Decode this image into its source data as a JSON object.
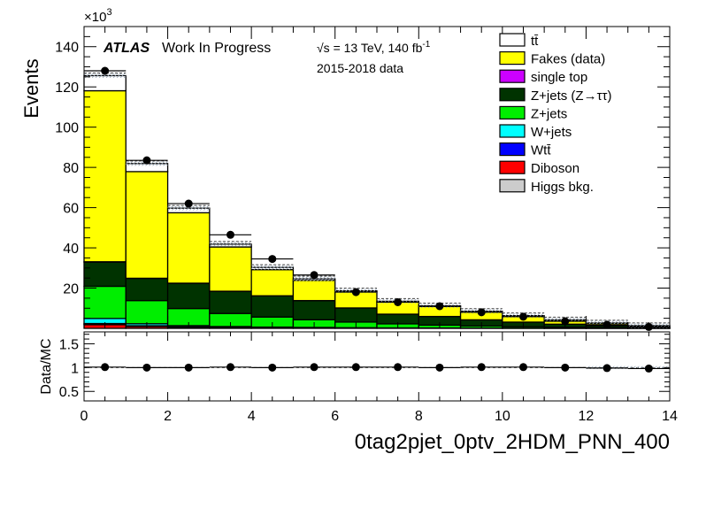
{
  "chart_data": {
    "type": "bar",
    "subtype": "stacked-histogram",
    "xlabel": "0tag2pjet_0ptv_2HDM_PNN_400",
    "ylabel": "Events",
    "y_multiplier": "×10",
    "y_multiplier_exp": "3",
    "ratio_ylabel": "Data/MC",
    "atlas_label": "ATLAS",
    "atlas_sublabel": "Work In Progress",
    "energy_label_sqrt": "√s",
    "energy_label_rest": " = 13 TeV, 140 fb",
    "energy_label_exp": "-1",
    "data_label": "2015-2018 data",
    "xlim": [
      0,
      14
    ],
    "ylim": [
      0,
      150
    ],
    "ratio_ylim": [
      0.3,
      1.75
    ],
    "x_ticks": [
      0,
      2,
      4,
      6,
      8,
      10,
      12,
      14
    ],
    "y_ticks": [
      20,
      40,
      60,
      80,
      100,
      120,
      140
    ],
    "ratio_ticks": [
      0.5,
      1,
      1.5
    ],
    "bin_edges": [
      0,
      1,
      2,
      3,
      4,
      5,
      6,
      7,
      8,
      9,
      10,
      11,
      12,
      13,
      14
    ],
    "stack_order_bottom_to_top": [
      "Diboson",
      "Higgs bkg.",
      "Wtt",
      "W+jets",
      "Z+jets",
      "Z+jets (Z→ττ)",
      "single top",
      "Fakes (data)",
      "tt"
    ],
    "series": [
      {
        "name": "tt",
        "legend": "tt̄",
        "color": "#ffffff",
        "values": [
          7.5,
          4.0,
          2.3,
          1.4,
          1.1,
          0.8,
          0.5,
          0.4,
          0.3,
          0.25,
          0.2,
          0.15,
          0.1,
          0.1
        ]
      },
      {
        "name": "Fakes (data)",
        "legend": "Fakes (data)",
        "color": "#ffff00",
        "values": [
          85,
          53,
          35,
          22,
          13,
          10,
          8,
          6,
          5,
          4,
          3,
          2,
          1.2,
          0.5
        ]
      },
      {
        "name": "single top",
        "legend": "single top",
        "color": "#cc00ff",
        "values": [
          0.2,
          0.1,
          0.1,
          0.05,
          0.05,
          0.05,
          0.02,
          0.02,
          0.02,
          0.02,
          0.01,
          0.01,
          0.01,
          0.01
        ]
      },
      {
        "name": "Z+jets (Z→ττ)",
        "legend": "Z+jets (Z→ττ)",
        "color": "#003300",
        "values": [
          12,
          11,
          12.5,
          11,
          10.5,
          9.5,
          7,
          4.8,
          4.3,
          3.1,
          2.3,
          1.5,
          1.0,
          0.5
        ]
      },
      {
        "name": "Z+jets",
        "legend": "Z+jets",
        "color": "#00ee00",
        "values": [
          16,
          11.5,
          8.5,
          6.5,
          5.0,
          3.8,
          2.8,
          2.0,
          1.4,
          1.0,
          0.7,
          0.5,
          0.3,
          0.2
        ]
      },
      {
        "name": "W+jets",
        "legend": "W+jets",
        "color": "#00ffff",
        "values": [
          2.5,
          1.0,
          0.6,
          0.4,
          0.3,
          0.2,
          0.15,
          0.1,
          0.08,
          0.05,
          0.04,
          0.03,
          0.02,
          0.01
        ]
      },
      {
        "name": "Wtt",
        "legend": "Wtt̄",
        "color": "#0000ff",
        "values": [
          0.3,
          0.2,
          0.1,
          0.1,
          0.05,
          0.05,
          0.03,
          0.02,
          0.02,
          0.01,
          0.01,
          0.01,
          0.01,
          0.01
        ]
      },
      {
        "name": "Diboson",
        "legend": "Diboson",
        "color": "#ff0000",
        "values": [
          1.8,
          0.9,
          0.5,
          0.3,
          0.2,
          0.15,
          0.1,
          0.08,
          0.06,
          0.04,
          0.03,
          0.02,
          0.02,
          0.01
        ]
      },
      {
        "name": "Higgs bkg.",
        "legend": "Higgs bkg.",
        "color": "#cccccc",
        "values": [
          0.3,
          0.2,
          0.15,
          0.1,
          0.08,
          0.06,
          0.04,
          0.03,
          0.02,
          0.02,
          0.01,
          0.01,
          0.01,
          0.01
        ]
      }
    ],
    "data_points": {
      "x": [
        0.5,
        1.5,
        2.5,
        3.5,
        4.5,
        5.5,
        6.5,
        7.5,
        8.5,
        9.5,
        10.5,
        11.5,
        12.5,
        13.5
      ],
      "y": [
        128,
        83.5,
        62,
        46.5,
        34.5,
        26.5,
        18,
        13,
        11,
        8,
        5.8,
        3.5,
        1.8,
        0.7
      ]
    },
    "ratio": {
      "x": [
        0.5,
        1.5,
        2.5,
        3.5,
        4.5,
        5.5,
        6.5,
        7.5,
        8.5,
        9.5,
        10.5,
        11.5,
        12.5,
        13.5
      ],
      "y": [
        1.01,
        1.0,
        1.0,
        1.01,
        1.0,
        1.01,
        1.01,
        1.01,
        1.0,
        1.01,
        1.01,
        1.0,
        0.99,
        0.98
      ]
    }
  }
}
